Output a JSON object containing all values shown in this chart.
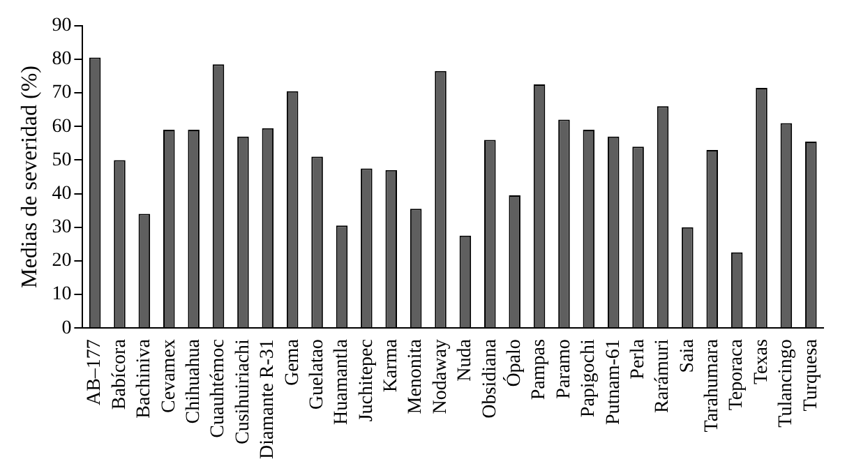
{
  "chart_data": {
    "type": "bar",
    "ylabel": "Medias de severidad (%)",
    "categories": [
      "AB–177",
      "Babícora",
      "Bachiniva",
      "Cevamex",
      "Chihuahua",
      "Cuauhtémoc",
      "Cusihuiriachi",
      "Diamante R-31",
      "Gema",
      "Guelatao",
      "Huamantla",
      "Juchitepec",
      "Karma",
      "Menonita",
      "Nodaway",
      "Nuda",
      "Obsidiana",
      "Ópalo",
      "Pampas",
      "Paramo",
      "Papigochi",
      "Putnam-61",
      "Perla",
      "Rarámuri",
      "Saia",
      "Tarahumara",
      "Teporaca",
      "Texas",
      "Tulancingo",
      "Turquesa"
    ],
    "values": [
      80.5,
      50,
      34,
      59,
      59,
      78.5,
      57,
      59.5,
      70.5,
      51,
      30.5,
      47.5,
      47,
      35.5,
      76.5,
      27.5,
      56,
      39.5,
      72.5,
      62,
      59,
      57,
      54,
      66,
      30,
      53,
      22.5,
      71.5,
      61,
      55.5
    ],
    "color": "#5f5f5f",
    "ylim": [
      0,
      90
    ],
    "yticks": [
      0,
      10,
      20,
      30,
      40,
      50,
      60,
      70,
      80,
      90
    ],
    "grid": false,
    "legend": false
  }
}
